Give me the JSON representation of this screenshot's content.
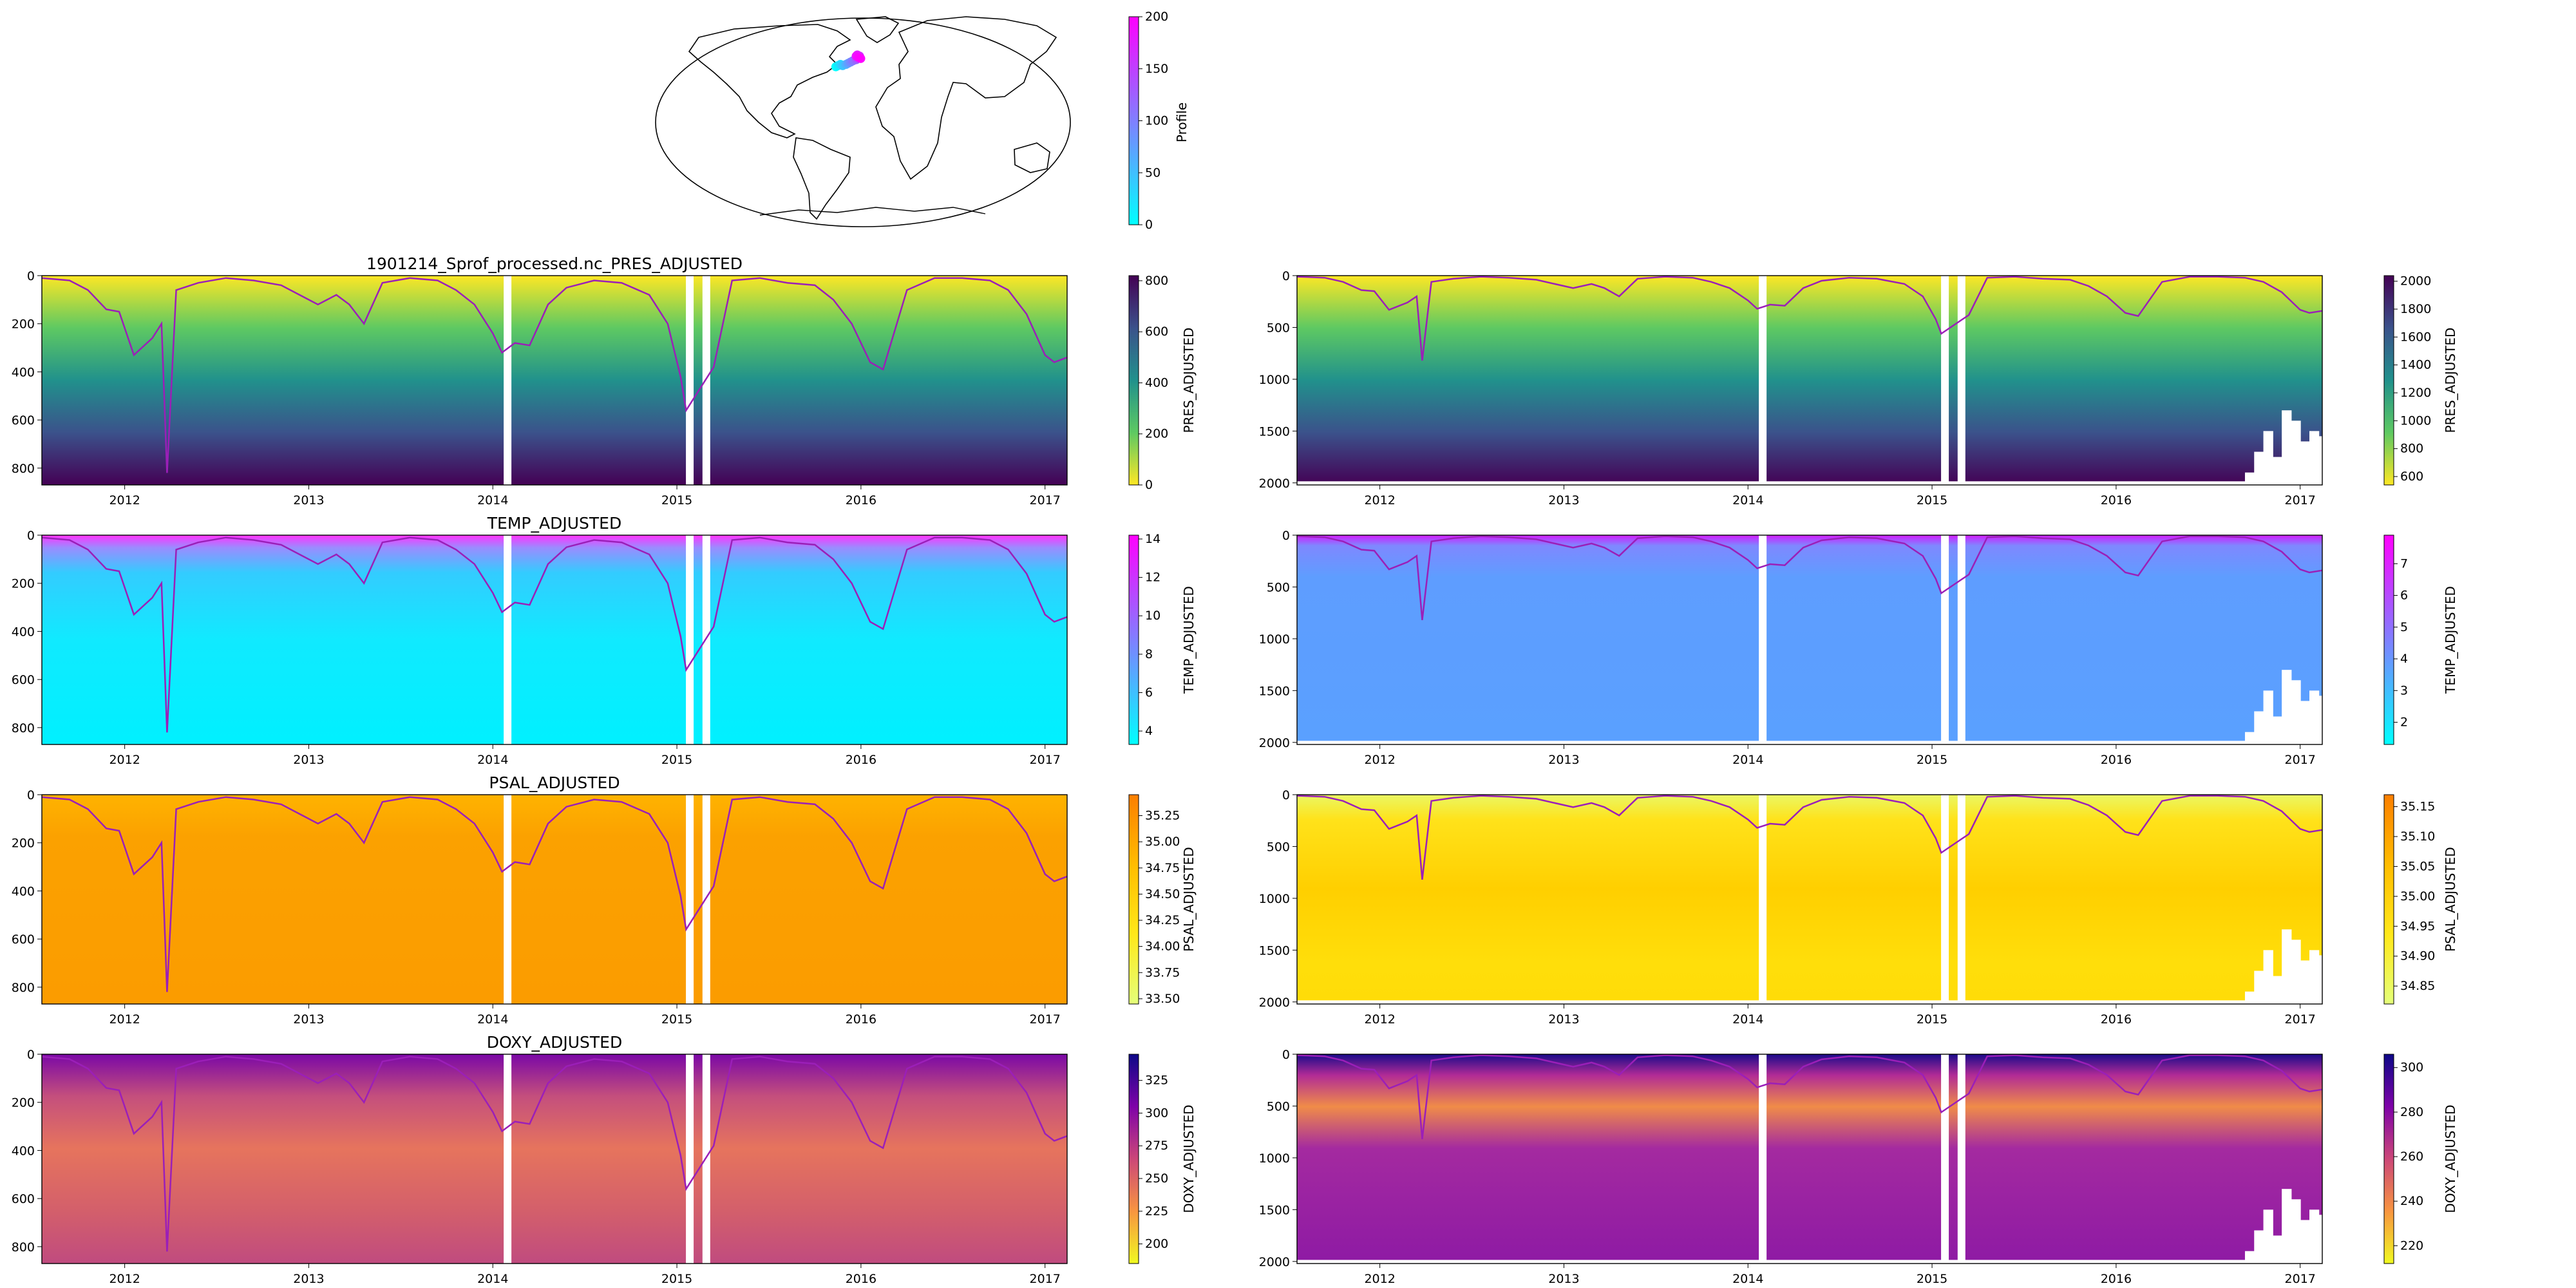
{
  "map": {
    "colorbar": {
      "label": "Profile",
      "ticks": [
        0,
        50,
        100,
        150,
        200
      ],
      "range": [
        0,
        200
      ],
      "cmap": "cool"
    },
    "track": {
      "lon": [
        -24,
        -22,
        -20,
        -18,
        -15,
        -13,
        -11,
        -9,
        -6,
        -5,
        -4,
        -3,
        -5,
        -6,
        -4,
        -2
      ],
      "lat": [
        47,
        48,
        49,
        48,
        49,
        50,
        51,
        52,
        53,
        54,
        55,
        56,
        57,
        56,
        55,
        54
      ],
      "profile": [
        0,
        15,
        30,
        45,
        60,
        75,
        90,
        105,
        120,
        135,
        150,
        165,
        175,
        185,
        195,
        200
      ]
    }
  },
  "colors": {
    "mld_line": "#9b1fb8",
    "land_outline": "#000000"
  },
  "chart_data": [
    {
      "type": "heatmap",
      "id": "pres_shallow",
      "title": "1901214_Sprof_processed.nc_PRES_ADJUSTED",
      "ylim": [
        870,
        0
      ],
      "yticks": [
        0,
        200,
        400,
        600,
        800
      ],
      "xticks": [
        "2012",
        "2013",
        "2014",
        "2015",
        "2016",
        "2017"
      ],
      "colorbar": {
        "label": "PRES_ADJUSTED",
        "ticks": [
          0,
          200,
          400,
          600,
          800
        ],
        "range": [
          0,
          820
        ],
        "cmap": "viridis_r"
      }
    },
    {
      "type": "heatmap",
      "id": "pres_deep",
      "title": "",
      "ylim": [
        2020,
        0
      ],
      "yticks": [
        0,
        500,
        1000,
        1500,
        2000
      ],
      "xticks": [
        "2012",
        "2013",
        "2014",
        "2015",
        "2016",
        "2017"
      ],
      "colorbar": {
        "label": "PRES_ADJUSTED",
        "ticks": [
          600,
          800,
          1000,
          1200,
          1400,
          1600,
          1800,
          2000
        ],
        "range": [
          540,
          2040
        ],
        "cmap": "viridis_r"
      }
    },
    {
      "type": "heatmap",
      "id": "temp_shallow",
      "title": "TEMP_ADJUSTED",
      "ylim": [
        870,
        0
      ],
      "yticks": [
        0,
        200,
        400,
        600,
        800
      ],
      "xticks": [
        "2012",
        "2013",
        "2014",
        "2015",
        "2016",
        "2017"
      ],
      "colorbar": {
        "label": "TEMP_ADJUSTED",
        "ticks": [
          4,
          6,
          8,
          10,
          12,
          14
        ],
        "range": [
          3.3,
          14.2
        ],
        "cmap": "cool"
      }
    },
    {
      "type": "heatmap",
      "id": "temp_deep",
      "title": "",
      "ylim": [
        2020,
        0
      ],
      "yticks": [
        0,
        500,
        1000,
        1500,
        2000
      ],
      "xticks": [
        "2012",
        "2013",
        "2014",
        "2015",
        "2016",
        "2017"
      ],
      "colorbar": {
        "label": "TEMP_ADJUSTED",
        "ticks": [
          2,
          3,
          4,
          5,
          6,
          7
        ],
        "range": [
          1.3,
          7.9
        ],
        "cmap": "cool"
      }
    },
    {
      "type": "heatmap",
      "id": "psal_shallow",
      "title": "PSAL_ADJUSTED",
      "ylim": [
        870,
        0
      ],
      "yticks": [
        0,
        200,
        400,
        600,
        800
      ],
      "xticks": [
        "2012",
        "2013",
        "2014",
        "2015",
        "2016",
        "2017"
      ],
      "colorbar": {
        "label": "PSAL_ADJUSTED",
        "ticks": [
          "33.50",
          "33.75",
          "34.00",
          "34.25",
          "34.50",
          "34.75",
          "35.00",
          "35.25"
        ],
        "range": [
          33.45,
          35.45
        ],
        "cmap": "Wistia"
      }
    },
    {
      "type": "heatmap",
      "id": "psal_deep",
      "title": "",
      "ylim": [
        2020,
        0
      ],
      "yticks": [
        0,
        500,
        1000,
        1500,
        2000
      ],
      "xticks": [
        "2012",
        "2013",
        "2014",
        "2015",
        "2016",
        "2017"
      ],
      "colorbar": {
        "label": "PSAL_ADJUSTED",
        "ticks": [
          "34.85",
          "34.90",
          "34.95",
          "35.00",
          "35.05",
          "35.10",
          "35.15"
        ],
        "range": [
          34.82,
          35.17
        ],
        "cmap": "Wistia"
      }
    },
    {
      "type": "heatmap",
      "id": "doxy_shallow",
      "title": "DOXY_ADJUSTED",
      "ylim": [
        870,
        0
      ],
      "yticks": [
        0,
        200,
        400,
        600,
        800
      ],
      "xticks": [
        "2012",
        "2013",
        "2014",
        "2015",
        "2016",
        "2017"
      ],
      "colorbar": {
        "label": "DOXY_ADJUSTED",
        "ticks": [
          200,
          225,
          250,
          275,
          300,
          325
        ],
        "range": [
          185,
          345
        ],
        "cmap": "plasma_r"
      }
    },
    {
      "type": "heatmap",
      "id": "doxy_deep",
      "title": "",
      "ylim": [
        2020,
        0
      ],
      "yticks": [
        0,
        500,
        1000,
        1500,
        2000
      ],
      "xticks": [
        "2012",
        "2013",
        "2014",
        "2015",
        "2016",
        "2017"
      ],
      "colorbar": {
        "label": "DOXY_ADJUSTED",
        "ticks": [
          220,
          240,
          260,
          280,
          300
        ],
        "range": [
          212,
          306
        ],
        "cmap": "plasma_r"
      }
    }
  ]
}
